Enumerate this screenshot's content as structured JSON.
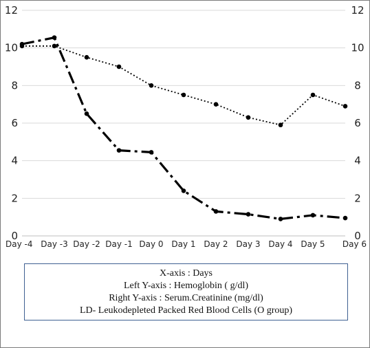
{
  "chart_data": {
    "type": "line",
    "categories": [
      "Day -4",
      "Day -3",
      "Day -2",
      "Day -1",
      "Day 0",
      "Day 1",
      "Day 2",
      "Day 3",
      "Day 4",
      "Day 5",
      "Day 6"
    ],
    "series": [
      {
        "axis": "left",
        "line_style": "dash-dot",
        "values": [
          10.2,
          10.55,
          6.5,
          4.55,
          4.45,
          2.4,
          1.3,
          1.15,
          0.9,
          1.1,
          0.95
        ]
      },
      {
        "axis": "right",
        "line_style": "dotted",
        "values": [
          10.1,
          10.1,
          9.5,
          9.0,
          8.0,
          7.5,
          7.0,
          6.3,
          5.9,
          7.5,
          6.9
        ]
      }
    ],
    "yticks": [
      "0",
      "2",
      "4",
      "6",
      "8",
      "10",
      "12"
    ],
    "ylim": [
      0,
      12
    ],
    "y2ticks": [
      "0",
      "2",
      "4",
      "6",
      "8",
      "10",
      "12"
    ],
    "y2lim": [
      0,
      12
    ],
    "grid": true,
    "colors": {
      "line": "#000000",
      "grid": "#d9d9d9",
      "legend_border": "#3e5f91"
    }
  },
  "legend": {
    "lines": [
      "X-axis : Days",
      "Left Y-axis  : Hemoglobin ( g/dl)",
      "Right Y-axis : Serum.Creatinine (mg/dl)",
      "LD- Leukodepleted Packed Red Blood Cells (O group)"
    ]
  }
}
